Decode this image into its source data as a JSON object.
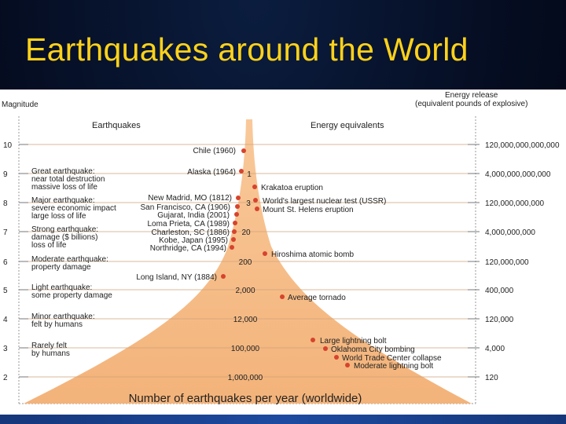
{
  "title": "Earthquakes around the World",
  "left_axis_title": "Magnitude",
  "right_axis_title": [
    "Energy release",
    "(equivalent pounds of explosive)"
  ],
  "col_heading_left": "Earthquakes",
  "col_heading_right": "Energy equivalents",
  "bottom_label": "Number of earthquakes per year (worldwide)",
  "magnitude_ticks": [
    "10",
    "9",
    "8",
    "7",
    "6",
    "5",
    "4",
    "3",
    "2"
  ],
  "energy_ticks": [
    "120,000,000,000,000",
    "4,000,000,000,000",
    "120,000,000,000",
    "4,000,000,000",
    "120,000,000",
    "400,000",
    "120,000",
    "4,000",
    "120"
  ],
  "frequency_labels": [
    "1",
    "3",
    "20",
    "200",
    "2,000",
    "12,000",
    "100,000",
    "1,000,000"
  ],
  "descriptions": [
    "Great earthquake:",
    "near total destruction",
    "massive loss of life",
    "Major earthquake:",
    "severe economic impact",
    "large loss of life",
    "Strong earthquake:",
    "damage ($ billions)",
    "loss of life",
    "Moderate earthquake:",
    "property damage",
    "Light earthquake:",
    "some property damage",
    "Minor earthquake:",
    "felt by humans",
    "Rarely felt",
    "by humans"
  ],
  "quakes": [
    {
      "name": "Chile (1960)",
      "magnitude": 9.5
    },
    {
      "name": "Alaska (1964)",
      "magnitude": 9.2
    },
    {
      "name": "New Madrid, MO (1812)",
      "magnitude": 8.1
    },
    {
      "name": "San Francisco, CA (1906)",
      "magnitude": 7.8
    },
    {
      "name": "Gujarat, India (2001)",
      "magnitude": 7.6
    },
    {
      "name": "Loma Prieta, CA (1989)",
      "magnitude": 7.1
    },
    {
      "name": "Charleston, SC (1886)",
      "magnitude": 7.0
    },
    {
      "name": "Kobe, Japan (1995)",
      "magnitude": 6.9
    },
    {
      "name": "Northridge, CA (1994)",
      "magnitude": 6.7
    },
    {
      "name": "Long Island, NY (1884)",
      "magnitude": 5.2
    }
  ],
  "energy_events": [
    {
      "name": "Krakatoa eruption",
      "magnitude": 8.6
    },
    {
      "name": "World's largest nuclear test (USSR)",
      "magnitude": 8.1
    },
    {
      "name": "Mount St. Helens eruption",
      "magnitude": 7.8
    },
    {
      "name": "Hiroshima atomic bomb",
      "magnitude": 6.2
    },
    {
      "name": "Average tornado",
      "magnitude": 4.8
    },
    {
      "name": "Large lightning bolt",
      "magnitude": 3.2
    },
    {
      "name": "Oklahoma City bombing",
      "magnitude": 2.9
    },
    {
      "name": "World Trade Center collapse",
      "magnitude": 2.6
    },
    {
      "name": "Moderate lightning bolt",
      "magnitude": 2.3
    }
  ],
  "colors": {
    "title": "#ffd21a",
    "funnel": "#f6bd88",
    "dot": "#d6432e",
    "background": "#050d22"
  }
}
